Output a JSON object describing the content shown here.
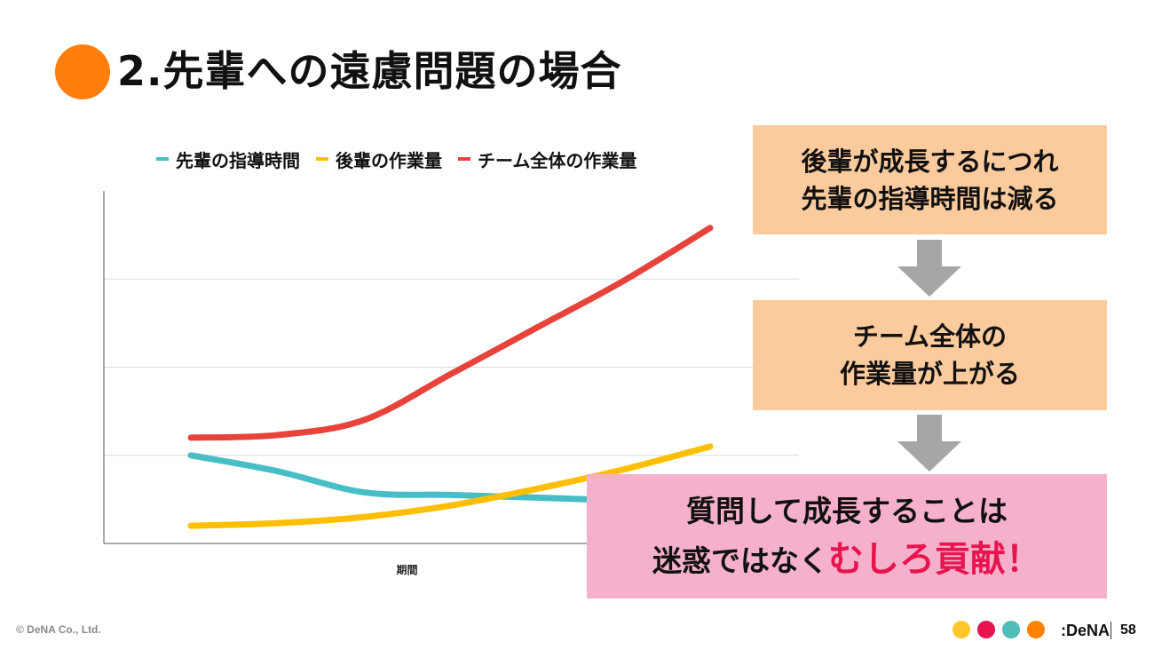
{
  "slide": {
    "title": "2.先輩への遠慮問題の場合",
    "title_dot_color": "#FF7F0E"
  },
  "chart_data": {
    "type": "line",
    "x": [
      0,
      0.5,
      1,
      1.5,
      2,
      2.5,
      3
    ],
    "xlabel": "期間",
    "ylabel": "",
    "ylim": [
      0,
      4
    ],
    "grid": true,
    "legend_position": "top",
    "series": [
      {
        "name": "先輩の指導時間",
        "color": "#47BEC6",
        "values": [
          1.0,
          0.82,
          0.58,
          0.55,
          0.52,
          0.48,
          0.38
        ]
      },
      {
        "name": "後輩の作業量",
        "color": "#FFBF00",
        "values": [
          0.2,
          0.23,
          0.3,
          0.43,
          0.62,
          0.84,
          1.1
        ]
      },
      {
        "name": "チーム全体の作業量",
        "color": "#E8433A",
        "values": [
          1.2,
          1.23,
          1.4,
          1.92,
          2.45,
          2.98,
          3.58
        ]
      }
    ]
  },
  "callouts": {
    "box1": {
      "line1": "後輩が成長するにつれ",
      "line2": "先輩の指導時間は減る",
      "bg": "#FBCB9E"
    },
    "box2": {
      "line1": "チーム全体の",
      "line2": "作業量が上がる",
      "bg": "#FBCB9E"
    },
    "box3": {
      "line1": "質問して成長することは",
      "line2_prefix": "迷惑ではなく",
      "line2_emphasis": "むしろ貢献！",
      "bg": "#F5B1CB",
      "emphasis_color": "#E8144F"
    },
    "arrow_color": "#A6A6A6"
  },
  "footer": {
    "copyright": "© DeNA Co., Ltd.",
    "brand": ":DeNA",
    "page_number": "58",
    "dot_colors": [
      "#FFC72C",
      "#E8144F",
      "#4FBDB8",
      "#FF8200"
    ]
  }
}
